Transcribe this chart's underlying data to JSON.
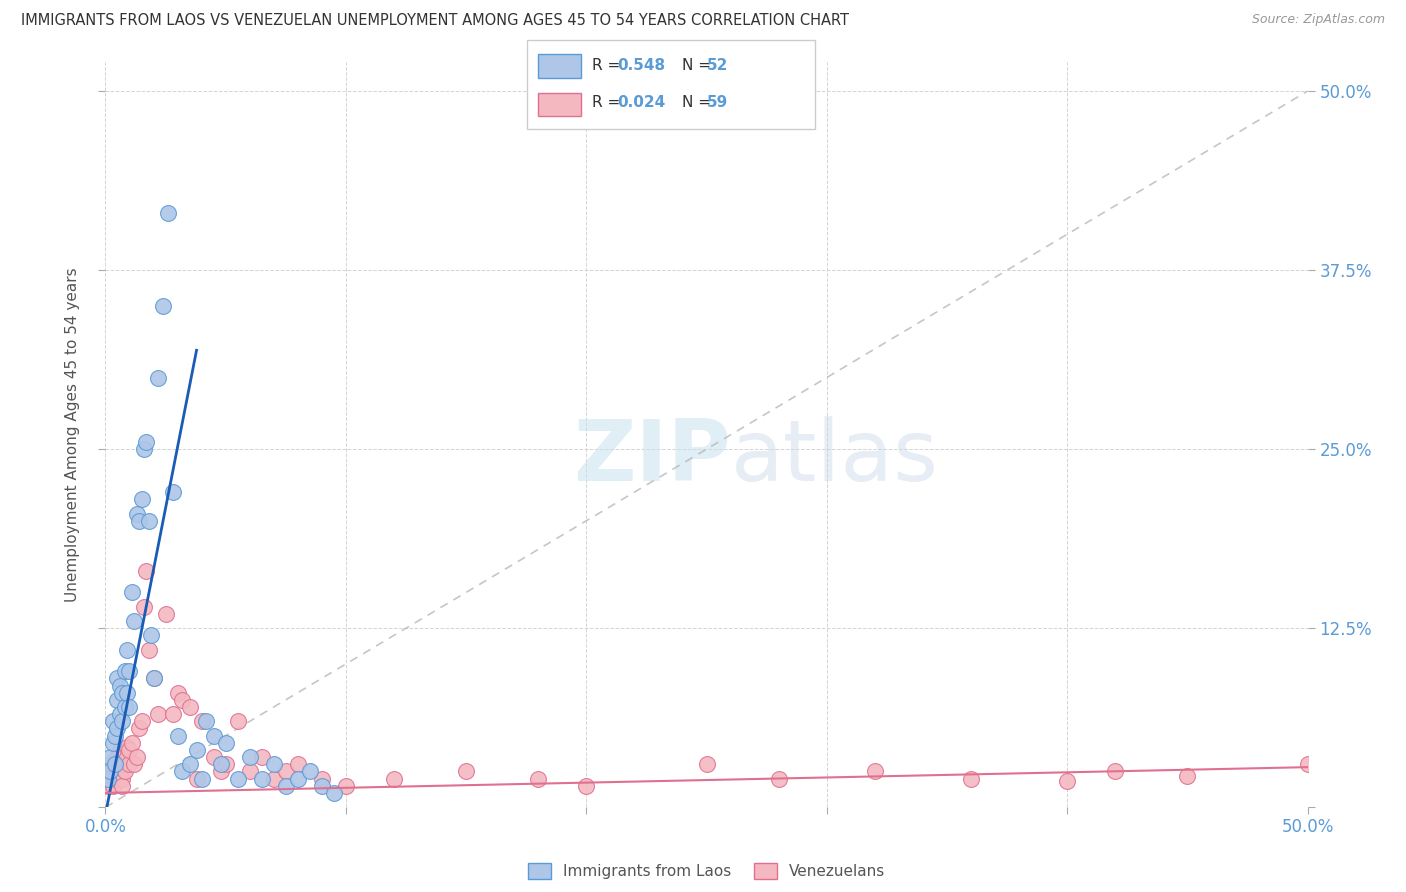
{
  "title": "IMMIGRANTS FROM LAOS VS VENEZUELAN UNEMPLOYMENT AMONG AGES 45 TO 54 YEARS CORRELATION CHART",
  "source": "Source: ZipAtlas.com",
  "ylabel": "Unemployment Among Ages 45 to 54 years",
  "xlim": [
    0.0,
    0.5
  ],
  "ylim": [
    0.0,
    0.52
  ],
  "background_color": "#ffffff",
  "grid_color": "#d0d0d0",
  "watermark": "ZIPatlas",
  "laos_color": "#aec6e8",
  "laos_edge_color": "#5b9bd5",
  "venezuelan_color": "#f4b8c1",
  "venezuelan_edge_color": "#e07090",
  "laos_line_color": "#1a5cb5",
  "venezuelan_line_color": "#e07090",
  "diagonal_line_color": "#b8b8b8",
  "laos_x": [
    0.001,
    0.002,
    0.002,
    0.003,
    0.003,
    0.004,
    0.004,
    0.005,
    0.005,
    0.005,
    0.006,
    0.006,
    0.007,
    0.007,
    0.008,
    0.008,
    0.009,
    0.009,
    0.01,
    0.01,
    0.011,
    0.012,
    0.013,
    0.014,
    0.015,
    0.016,
    0.017,
    0.018,
    0.019,
    0.02,
    0.022,
    0.024,
    0.026,
    0.028,
    0.03,
    0.032,
    0.035,
    0.038,
    0.04,
    0.042,
    0.045,
    0.048,
    0.05,
    0.055,
    0.06,
    0.065,
    0.07,
    0.075,
    0.08,
    0.085,
    0.09,
    0.095
  ],
  "laos_y": [
    0.02,
    0.025,
    0.035,
    0.045,
    0.06,
    0.03,
    0.05,
    0.055,
    0.075,
    0.09,
    0.065,
    0.085,
    0.06,
    0.08,
    0.07,
    0.095,
    0.08,
    0.11,
    0.07,
    0.095,
    0.15,
    0.13,
    0.205,
    0.2,
    0.215,
    0.25,
    0.255,
    0.2,
    0.12,
    0.09,
    0.3,
    0.35,
    0.415,
    0.22,
    0.05,
    0.025,
    0.03,
    0.04,
    0.02,
    0.06,
    0.05,
    0.03,
    0.045,
    0.02,
    0.035,
    0.02,
    0.03,
    0.015,
    0.02,
    0.025,
    0.015,
    0.01
  ],
  "venezuelan_x": [
    0.001,
    0.002,
    0.002,
    0.003,
    0.003,
    0.004,
    0.004,
    0.005,
    0.005,
    0.006,
    0.006,
    0.007,
    0.007,
    0.008,
    0.008,
    0.009,
    0.009,
    0.01,
    0.01,
    0.011,
    0.012,
    0.013,
    0.014,
    0.015,
    0.016,
    0.017,
    0.018,
    0.02,
    0.022,
    0.025,
    0.028,
    0.03,
    0.032,
    0.035,
    0.038,
    0.04,
    0.045,
    0.048,
    0.05,
    0.055,
    0.06,
    0.065,
    0.07,
    0.075,
    0.08,
    0.09,
    0.1,
    0.12,
    0.15,
    0.18,
    0.2,
    0.25,
    0.28,
    0.32,
    0.36,
    0.4,
    0.42,
    0.45,
    0.5
  ],
  "venezuelan_y": [
    0.015,
    0.02,
    0.03,
    0.015,
    0.025,
    0.02,
    0.03,
    0.022,
    0.035,
    0.028,
    0.04,
    0.02,
    0.015,
    0.03,
    0.025,
    0.035,
    0.042,
    0.03,
    0.04,
    0.045,
    0.03,
    0.035,
    0.055,
    0.06,
    0.14,
    0.165,
    0.11,
    0.09,
    0.065,
    0.135,
    0.065,
    0.08,
    0.075,
    0.07,
    0.02,
    0.06,
    0.035,
    0.025,
    0.03,
    0.06,
    0.025,
    0.035,
    0.02,
    0.025,
    0.03,
    0.02,
    0.015,
    0.02,
    0.025,
    0.02,
    0.015,
    0.03,
    0.02,
    0.025,
    0.02,
    0.018,
    0.025,
    0.022,
    0.03
  ],
  "laos_line_x": [
    0.0,
    0.038
  ],
  "laos_line_y": [
    -0.005,
    0.32
  ],
  "ven_line_x": [
    0.0,
    0.5
  ],
  "ven_line_y": [
    0.01,
    0.028
  ],
  "diag_line_x": [
    0.0,
    0.5
  ],
  "diag_line_y": [
    0.0,
    0.5
  ]
}
